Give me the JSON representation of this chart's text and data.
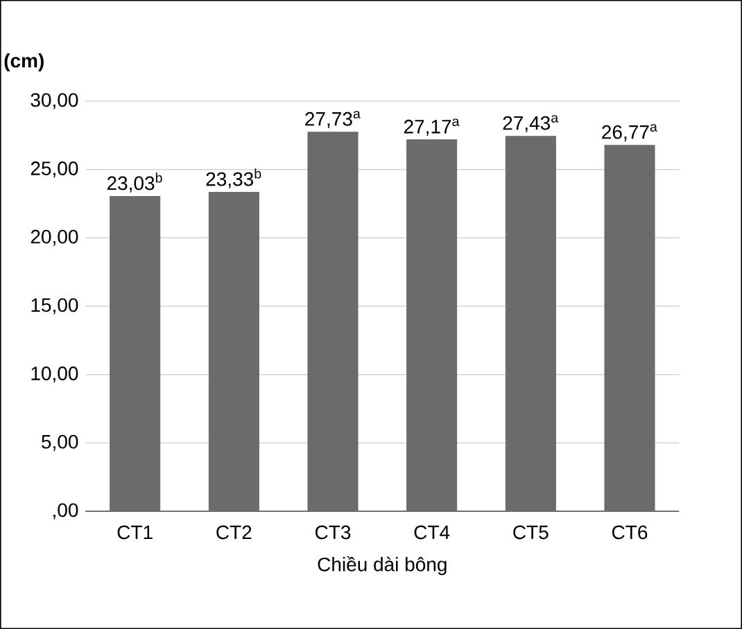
{
  "chart_data": {
    "type": "bar",
    "ylabel": "(cm)",
    "xlabel": "Chiều dài bông",
    "categories": [
      "CT1",
      "CT2",
      "CT3",
      "CT4",
      "CT5",
      "CT6"
    ],
    "values": [
      23.03,
      23.33,
      27.73,
      27.17,
      27.43,
      26.77
    ],
    "value_labels": [
      "23,03$^{b}$",
      "23,33$^{b}$",
      "27,73$^{a}$",
      "27,17$^{a}$",
      "27,43$^{a}$",
      "26,77$^{a}$"
    ],
    "color": "#6b6b6b",
    "ylim": [
      0,
      30
    ],
    "yticks": [
      {
        "value": 0,
        "label": ",00"
      },
      {
        "value": 5,
        "label": "5,00"
      },
      {
        "value": 10,
        "label": "10,00"
      },
      {
        "value": 15,
        "label": "15,00"
      },
      {
        "value": 20,
        "label": "20,00"
      },
      {
        "value": 25,
        "label": "25,00"
      },
      {
        "value": 30,
        "label": "30,00"
      }
    ],
    "grid": "y"
  }
}
